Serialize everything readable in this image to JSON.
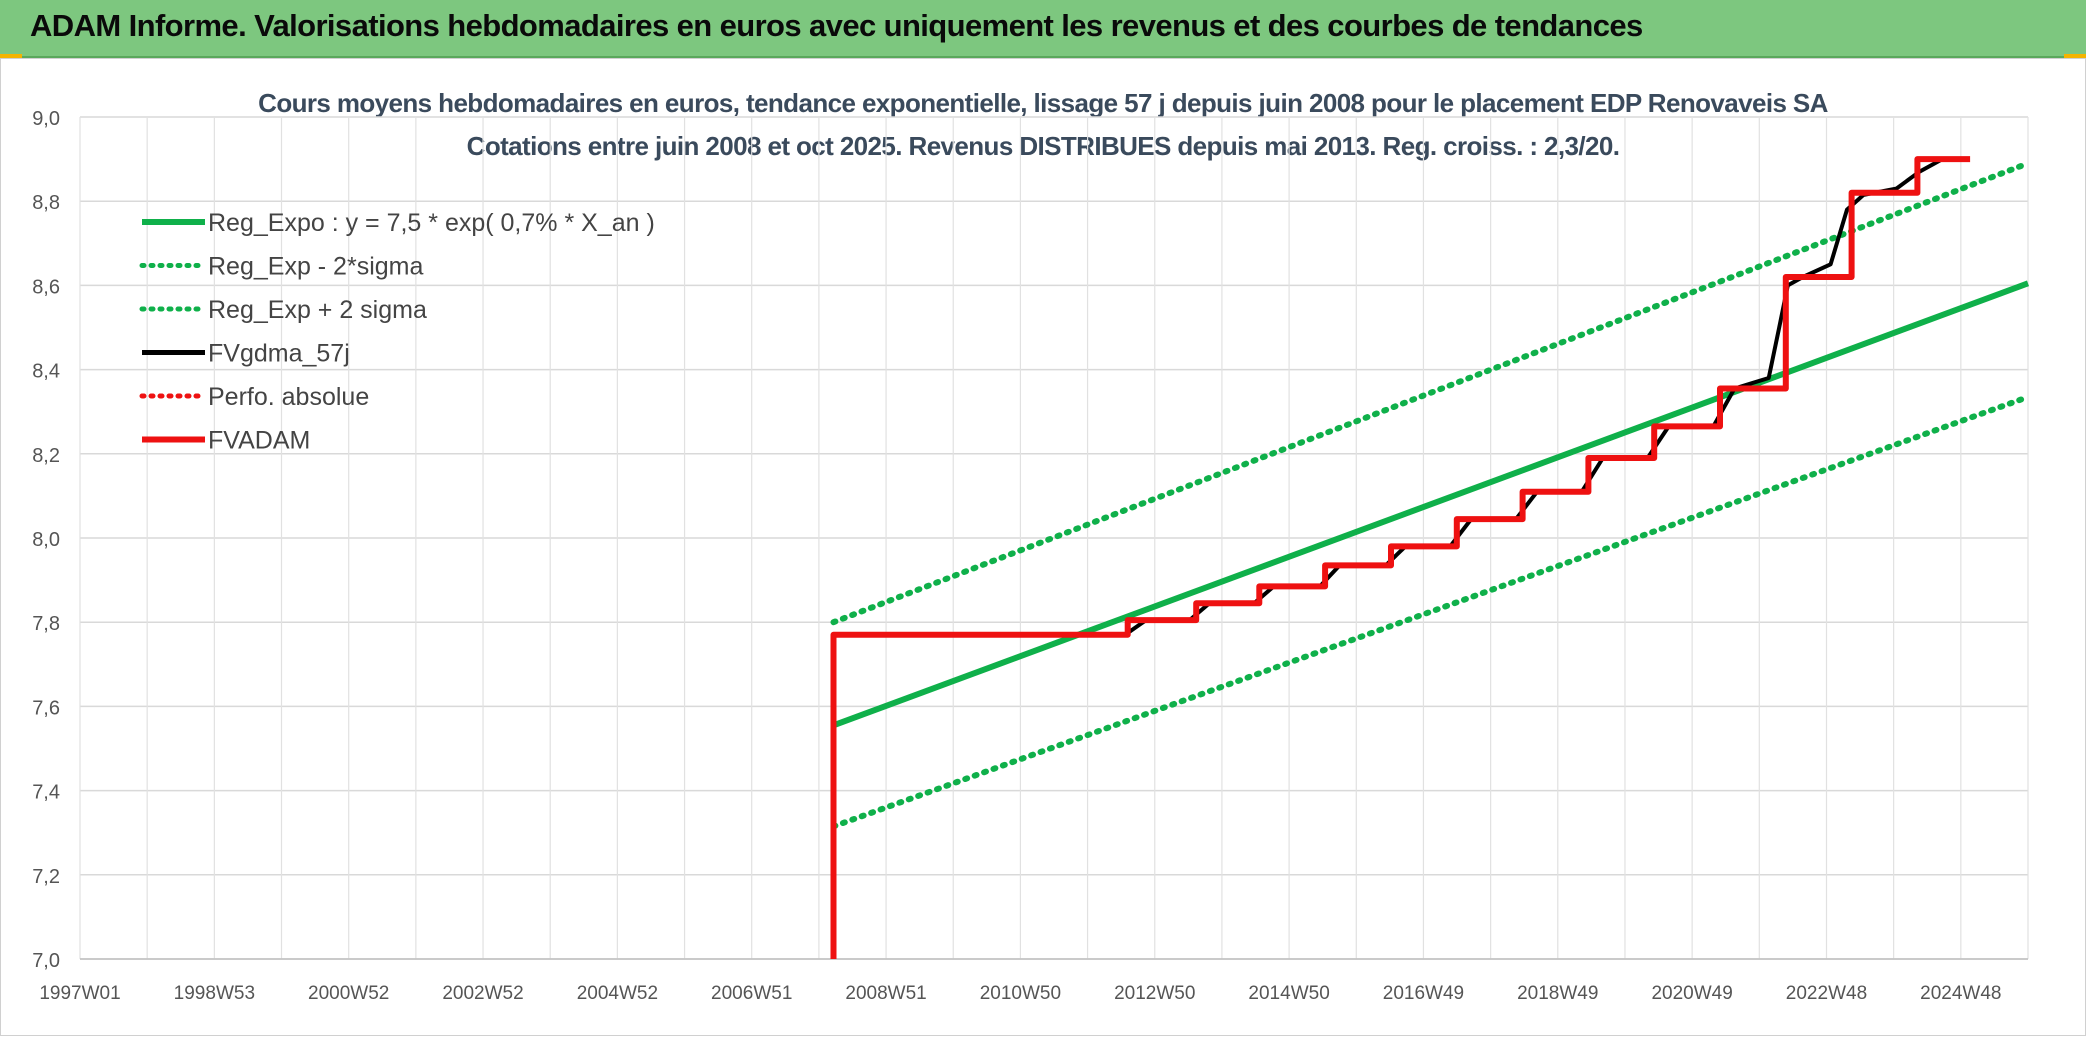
{
  "page": {
    "banner_title": "ADAM Informe. Valorisations hebdomadaires en euros avec uniquement les revenus et des courbes de tendances",
    "colors": {
      "banner": "#7dc77f",
      "green": "#0fb04a",
      "black": "#000000",
      "red": "#ee1111",
      "grid": "#d9d9d9",
      "text": "#3a4a5c"
    }
  },
  "chart_data": {
    "type": "line",
    "title": "Cours moyens hebdomadaires en euros, tendance exponentielle, lissage 57 j depuis juin 2008 pour le placement EDP Renovaveis SA",
    "subtitle": "Cotations entre juin 2008 et oct 2025. Revenus DISTRIBUES depuis mai 2013. Reg. croiss. : 2,3/20.",
    "xlabel": "",
    "ylabel": "",
    "x_ticks": [
      "1997W01",
      "1998W53",
      "2000W52",
      "2002W52",
      "2004W52",
      "2006W51",
      "2008W51",
      "2010W50",
      "2012W50",
      "2014W50",
      "2016W49",
      "2018W49",
      "2020W49",
      "2022W48",
      "2024W48"
    ],
    "xlim": [
      1997.0,
      2026.6
    ],
    "y_ticks": [
      "7,0",
      "7,2",
      "7,4",
      "7,6",
      "7,8",
      "8,0",
      "8,2",
      "8,4",
      "8,6",
      "8,8",
      "9,0"
    ],
    "ylim": [
      7.0,
      9.0
    ],
    "grid": true,
    "legend_position": "top-left",
    "series": [
      {
        "name": "Reg_Expo : y = 7,5 * exp( 0,7% *  X_an )",
        "style": "solid",
        "color": "#0fb04a",
        "points": [
          [
            2008.45,
            7.555
          ],
          [
            2026.6,
            8.605
          ]
        ]
      },
      {
        "name": "Reg_Exp - 2*sigma",
        "style": "dotted",
        "color": "#0fb04a",
        "points": [
          [
            2008.45,
            7.315
          ],
          [
            2026.6,
            8.335
          ]
        ]
      },
      {
        "name": "Reg_Exp + 2 sigma",
        "style": "dotted",
        "color": "#0fb04a",
        "points": [
          [
            2008.45,
            7.8
          ],
          [
            2026.6,
            8.89
          ]
        ]
      },
      {
        "name": "FVgdma_57j",
        "style": "solid",
        "color": "#000000",
        "points": [
          [
            2008.45,
            7.77
          ],
          [
            2012.88,
            7.77
          ],
          [
            2013.2,
            7.805
          ],
          [
            2013.86,
            7.805
          ],
          [
            2014.16,
            7.845
          ],
          [
            2014.84,
            7.845
          ],
          [
            2015.14,
            7.885
          ],
          [
            2015.84,
            7.885
          ],
          [
            2016.14,
            7.935
          ],
          [
            2016.84,
            7.935
          ],
          [
            2017.14,
            7.98
          ],
          [
            2017.82,
            7.98
          ],
          [
            2018.14,
            8.045
          ],
          [
            2018.82,
            8.045
          ],
          [
            2019.14,
            8.11
          ],
          [
            2019.82,
            8.11
          ],
          [
            2020.14,
            8.19
          ],
          [
            2020.82,
            8.19
          ],
          [
            2021.14,
            8.265
          ],
          [
            2021.82,
            8.265
          ],
          [
            2022.14,
            8.355
          ],
          [
            2022.66,
            8.38
          ],
          [
            2022.82,
            8.5
          ],
          [
            2022.95,
            8.6
          ],
          [
            2023.18,
            8.62
          ],
          [
            2023.6,
            8.65
          ],
          [
            2023.85,
            8.78
          ],
          [
            2024.1,
            8.815
          ],
          [
            2024.6,
            8.83
          ],
          [
            2024.95,
            8.87
          ],
          [
            2025.3,
            8.9
          ],
          [
            2025.68,
            8.9
          ]
        ]
      },
      {
        "name": "Perfo. absolue",
        "style": "dotted",
        "color": "#ee1111",
        "points": []
      },
      {
        "name": "FVADAM",
        "style": "solid",
        "color": "#ee1111",
        "points": [
          [
            2008.45,
            7.0
          ],
          [
            2008.45,
            7.77
          ],
          [
            2012.92,
            7.77
          ],
          [
            2012.92,
            7.805
          ],
          [
            2013.96,
            7.805
          ],
          [
            2013.96,
            7.845
          ],
          [
            2014.92,
            7.845
          ],
          [
            2014.92,
            7.885
          ],
          [
            2015.92,
            7.885
          ],
          [
            2015.92,
            7.935
          ],
          [
            2016.92,
            7.935
          ],
          [
            2016.92,
            7.98
          ],
          [
            2017.92,
            7.98
          ],
          [
            2017.92,
            8.045
          ],
          [
            2018.92,
            8.045
          ],
          [
            2018.92,
            8.11
          ],
          [
            2019.92,
            8.11
          ],
          [
            2019.92,
            8.19
          ],
          [
            2020.92,
            8.19
          ],
          [
            2020.92,
            8.265
          ],
          [
            2021.92,
            8.265
          ],
          [
            2021.92,
            8.355
          ],
          [
            2022.92,
            8.355
          ],
          [
            2022.92,
            8.62
          ],
          [
            2023.92,
            8.62
          ],
          [
            2023.92,
            8.82
          ],
          [
            2024.92,
            8.82
          ],
          [
            2024.92,
            8.9
          ],
          [
            2025.72,
            8.9
          ]
        ]
      }
    ]
  }
}
